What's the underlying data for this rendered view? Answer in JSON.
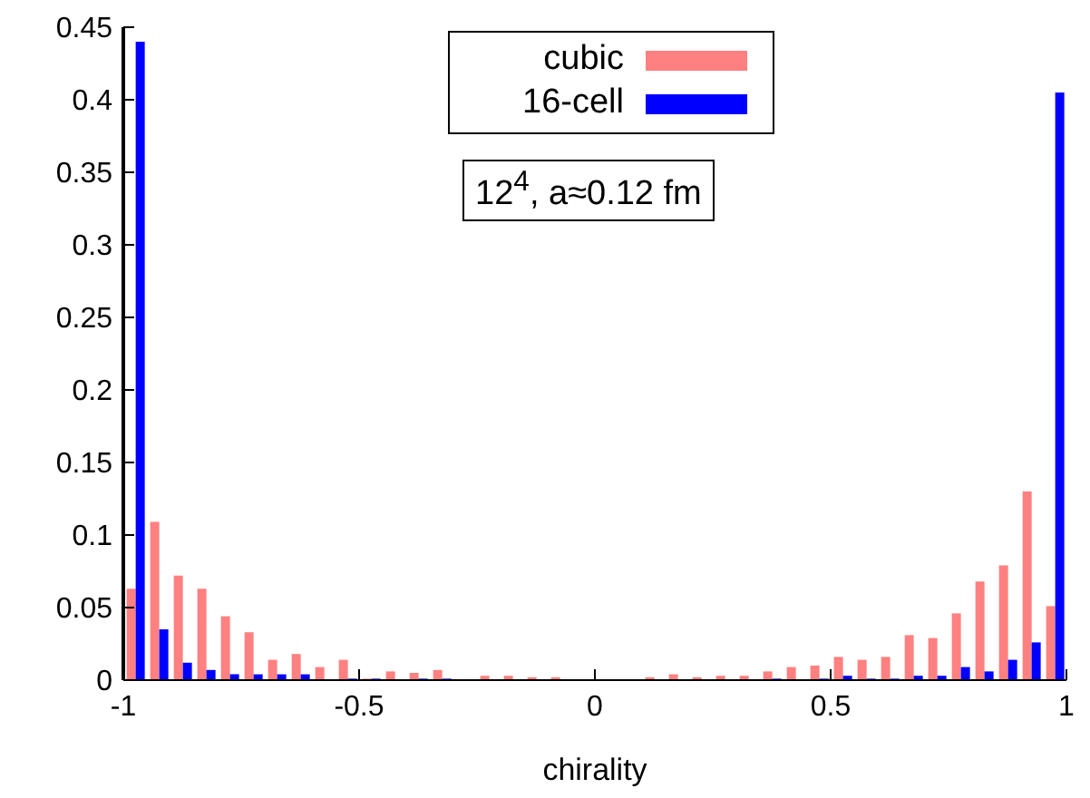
{
  "chart_data": {
    "type": "histogram",
    "xlabel": "chirality",
    "bins": [
      -1,
      -0.95,
      -0.9,
      -0.85,
      -0.8,
      -0.75,
      -0.7,
      -0.65,
      -0.6,
      -0.55,
      -0.5,
      -0.45,
      -0.4,
      -0.35,
      -0.3,
      -0.25,
      -0.2,
      -0.15,
      -0.1,
      -0.05,
      0,
      0.05,
      0.1,
      0.15,
      0.2,
      0.25,
      0.3,
      0.35,
      0.4,
      0.45,
      0.5,
      0.55,
      0.6,
      0.65,
      0.7,
      0.75,
      0.8,
      0.85,
      0.9,
      0.95,
      1
    ],
    "series": [
      {
        "name": "cubic",
        "color": "#ff8080",
        "values": [
          0.063,
          0.109,
          0.072,
          0.063,
          0.044,
          0.033,
          0.014,
          0.018,
          0.009,
          0.014,
          0.001,
          0.006,
          0.005,
          0.007,
          0,
          0.003,
          0.003,
          0.002,
          0.002,
          0,
          0,
          0,
          0.002,
          0.004,
          0.002,
          0.003,
          0.003,
          0.006,
          0.009,
          0.01,
          0.016,
          0.014,
          0.016,
          0.031,
          0.029,
          0.046,
          0.068,
          0.079,
          0.13,
          0.051
        ]
      },
      {
        "name": "16-cell",
        "color": "#0000ff",
        "values": [
          0.44,
          0.035,
          0.012,
          0.007,
          0.004,
          0.004,
          0.004,
          0.004,
          0,
          0.001,
          0.001,
          0,
          0.001,
          0.001,
          0,
          0,
          0,
          0,
          0,
          0,
          0,
          0,
          0,
          0,
          0,
          0,
          0,
          0.001,
          0,
          0.001,
          0.003,
          0.001,
          0.001,
          0.003,
          0.003,
          0.009,
          0.006,
          0.014,
          0.026,
          0.405
        ]
      }
    ],
    "xlim": [
      -1,
      1
    ],
    "xticks": [
      -1,
      -0.5,
      0,
      0.5,
      1
    ],
    "ylim": [
      0,
      0.45
    ],
    "yticks": [
      0,
      0.05,
      0.1,
      0.15,
      0.2,
      0.25,
      0.3,
      0.35,
      0.4,
      0.45
    ],
    "legend": "top",
    "annotations": [
      "12$^{4}$, a≈0.12 fm"
    ]
  }
}
